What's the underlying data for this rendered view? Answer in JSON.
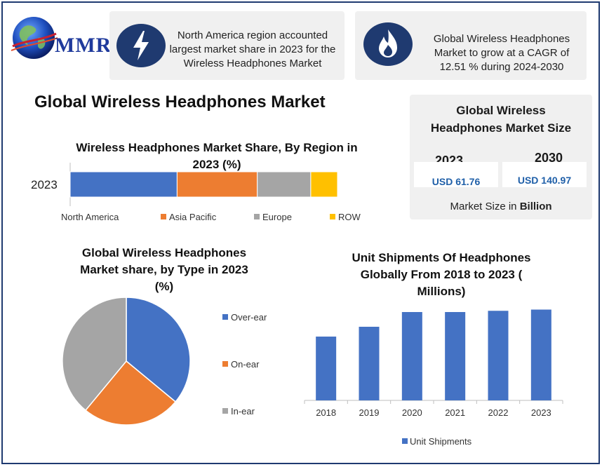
{
  "logo": {
    "text": "MMR"
  },
  "info_boxes": [
    {
      "icon": "lightning-icon",
      "text": "North America region accounted largest market share in 2023 for the Wireless Headphones Market"
    },
    {
      "icon": "flame-icon",
      "text": "Global Wireless Headphones Market to grow at a CAGR of 12.51 % during 2024-2030"
    }
  ],
  "main_title": "Global Wireless Headphones Market",
  "market_size": {
    "title": "Global Wireless Headphones Market Size",
    "year_a": "2023",
    "value_a": "USD 61.76",
    "year_b": "2030",
    "value_b": "USD 140.97",
    "footer_prefix": "Market Size in ",
    "footer_bold": "Billion"
  },
  "colors": {
    "blue": "#4472c4",
    "orange": "#ed7d31",
    "gray": "#a5a5a5",
    "yellow": "#ffc000",
    "navy": "#1f3a70"
  },
  "chart_data": [
    {
      "type": "bar",
      "orientation": "horizontal-stacked",
      "title": "Wireless Headphones Market Share, By Region in 2023 (%)",
      "categories": [
        "2023"
      ],
      "series": [
        {
          "name": "North America",
          "values": [
            40
          ],
          "color": "#4472c4"
        },
        {
          "name": "Asia Pacific",
          "values": [
            30
          ],
          "color": "#ed7d31"
        },
        {
          "name": "Europe",
          "values": [
            20
          ],
          "color": "#a5a5a5"
        },
        {
          "name": "ROW",
          "values": [
            10
          ],
          "color": "#ffc000"
        }
      ],
      "legend": "bottom"
    },
    {
      "type": "pie",
      "title": "Global Wireless Headphones Market share, by Type in 2023 (%)",
      "labels": [
        "Over-ear",
        "On-ear",
        "In-ear"
      ],
      "values": [
        36,
        25,
        39
      ],
      "colors": [
        "#4472c4",
        "#ed7d31",
        "#a5a5a5"
      ],
      "legend": "right"
    },
    {
      "type": "bar",
      "title": "Unit Shipments Of Headphones Globally From 2018 to 2023 ( Millions)",
      "categories": [
        "2018",
        "2019",
        "2020",
        "2021",
        "2022",
        "2023"
      ],
      "series": [
        {
          "name": "Unit Shipments",
          "values": [
            52,
            60,
            72,
            72,
            73,
            74
          ],
          "color": "#4472c4"
        }
      ],
      "ylim": [
        0,
        80
      ],
      "grid": false,
      "legend": "bottom"
    }
  ]
}
